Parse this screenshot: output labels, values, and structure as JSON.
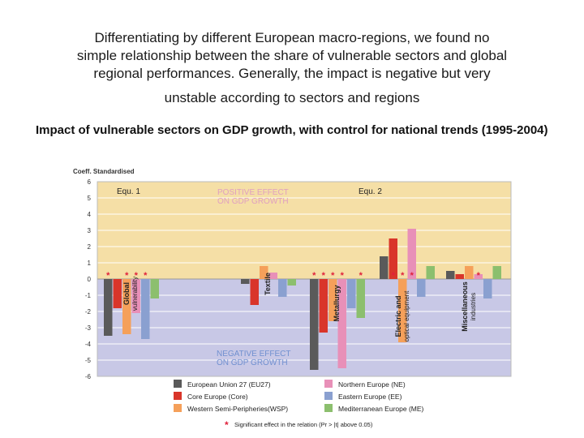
{
  "heading": {
    "line1": "Differentiating by different European macro-regions, we found no",
    "line2": "simple relationship between the share of vulnerable sectors and global",
    "line3": "regional performances. Generally, the impact is negative but very",
    "line4": "unstable according to sectors and regions"
  },
  "subtitle": "Impact of vulnerable sectors on GDP growth, with control for national trends (1995-2004)",
  "chart_data": {
    "type": "bar",
    "ylabel": "Coeff. Standardised",
    "ylim": [
      -6,
      6
    ],
    "yticks": [
      "6",
      "5",
      "4",
      "3",
      "2",
      "1",
      "0",
      "-1",
      "-2",
      "-3",
      "-4",
      "-5",
      "-6"
    ],
    "equations": [
      "Equ. 1",
      "Equ. 2"
    ],
    "positive_label": [
      "POSITIVE EFFECT",
      "ON GDP GROWTH"
    ],
    "negative_label": [
      "NEGATIVE EFFECT",
      "ON GDP GROWTH"
    ],
    "colors": {
      "EU27": "#5a5a5a",
      "Core": "#d9352a",
      "WSP": "#f5a05a",
      "NE": "#e890b8",
      "EE": "#8aa0d0",
      "ME": "#8cbf6e",
      "positive_bg": "#f5dfa6",
      "negative_bg": "#c8c8e6",
      "star": "#e0203a"
    },
    "categories": [
      {
        "label": [
          "Global",
          "vulnerability"
        ],
        "values": {
          "EU27": -3.5,
          "Core": -1.8,
          "WSP": -3.4,
          "NE": -2.1,
          "EE": -3.7,
          "ME": -1.2
        },
        "stars": [
          "EU27",
          "WSP",
          "NE",
          "EE"
        ]
      },
      {
        "label": [
          "Textile"
        ],
        "values": {
          "EU27": -0.3,
          "Core": -1.6,
          "WSP": 0.8,
          "NE": 0.4,
          "EE": -1.1,
          "ME": -0.4
        },
        "stars": []
      },
      {
        "label": [
          "Metallurgy"
        ],
        "values": {
          "EU27": -5.6,
          "Core": -3.3,
          "WSP": -2.6,
          "NE": -5.5,
          "EE": -1.8,
          "ME": -2.4
        },
        "stars": [
          "EU27",
          "Core",
          "WSP",
          "NE",
          "ME"
        ]
      },
      {
        "label": [
          "Electric and",
          "optical equipment"
        ],
        "values": {
          "EU27": 1.4,
          "Core": 2.5,
          "WSP": -3.9,
          "NE": 3.1,
          "EE": -1.1,
          "ME": 0.8
        },
        "stars": [
          "Core",
          "WSP",
          "NE"
        ]
      },
      {
        "label": [
          "Miscellaneous",
          "industries"
        ],
        "values": {
          "EU27": 0.5,
          "Core": 0.3,
          "WSP": 0.8,
          "NE": 0.3,
          "EE": -1.2,
          "ME": 0.8
        },
        "stars": [
          "NE"
        ]
      }
    ],
    "series": [
      {
        "key": "EU27",
        "name": "European Union 27 (EU27)"
      },
      {
        "key": "Core",
        "name": "Core Europe (Core)"
      },
      {
        "key": "WSP",
        "name": "Western Semi-Peripheries(WSP)"
      },
      {
        "key": "NE",
        "name": "Northern Europe (NE)"
      },
      {
        "key": "EE",
        "name": "Eastern Europe (EE)"
      },
      {
        "key": "ME",
        "name": "Mediterranean Europe (ME)"
      }
    ],
    "significance_note": "Significant effect in the relation (Pr > |t| above 0.05)"
  }
}
